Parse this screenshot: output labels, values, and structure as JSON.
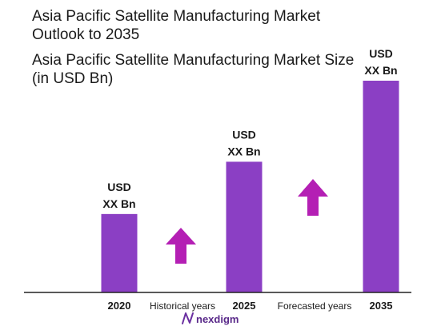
{
  "title": "Asia Pacific Satellite Manufacturing Market Outlook to 2035",
  "subtitle": "Asia Pacific Satellite Manufacturing Market Size (in USD Bn)",
  "chart_data": {
    "type": "bar",
    "title": "Asia Pacific Satellite Manufacturing Market Outlook to 2035",
    "subtitle": "Asia Pacific Satellite Manufacturing Market Size (in USD Bn)",
    "categories": [
      "2020",
      "2025",
      "2035"
    ],
    "values": [
      30,
      50,
      81
    ],
    "data_labels": [
      [
        "USD",
        "XX Bn"
      ],
      [
        "USD",
        "XX Bn"
      ],
      [
        "USD",
        "XX Bn"
      ]
    ],
    "annotations": [
      "Historical years",
      "Forecasted years"
    ],
    "bar_color": "#8b3fc4",
    "arrow_color": "#b41fb4",
    "grid": false,
    "legend": "none"
  },
  "brand": {
    "name": "nexdigm",
    "color": "#5a2a8a"
  }
}
